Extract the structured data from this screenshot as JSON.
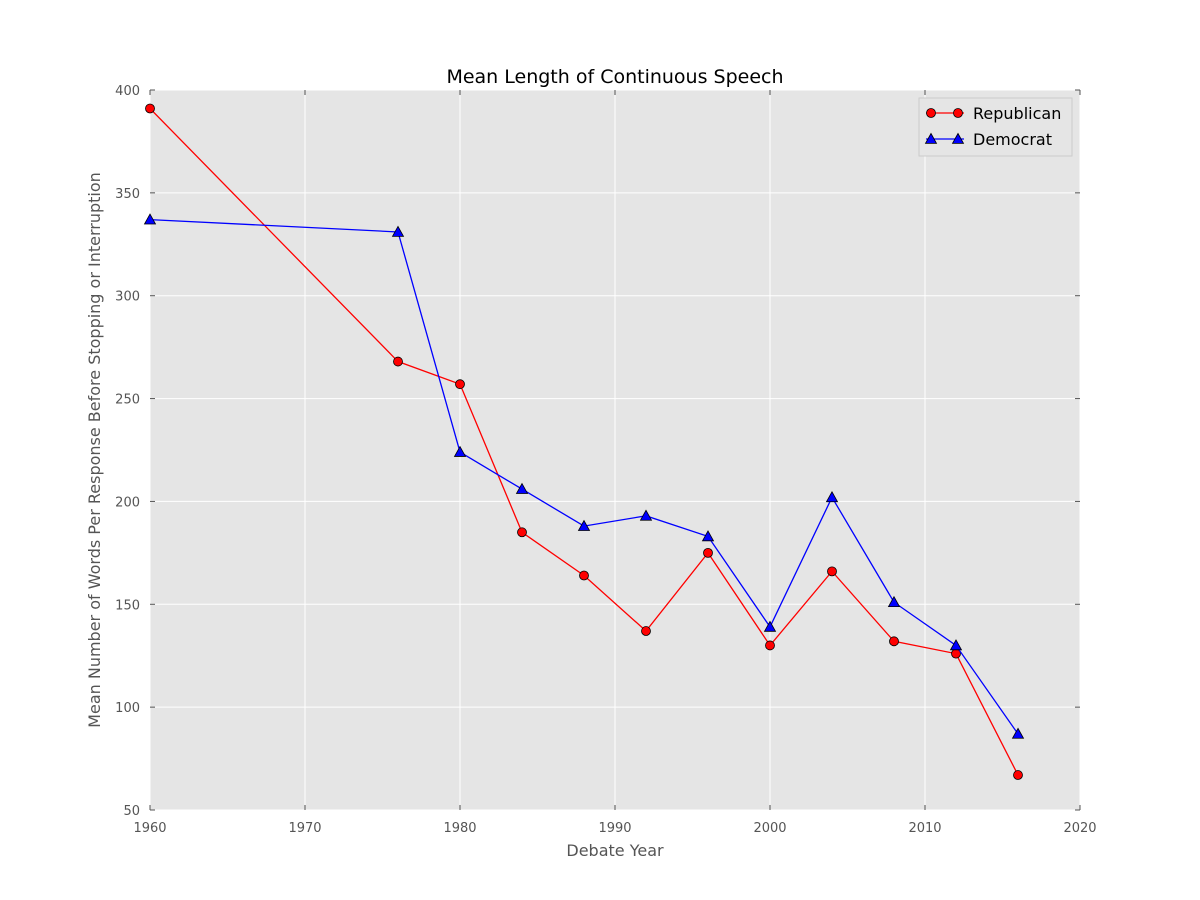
{
  "chart_data": {
    "type": "line",
    "title": "Mean Length of Continuous Speech",
    "xlabel": "Debate Year",
    "ylabel": "Mean Number of Words Per Response Before Stopping or Interruption",
    "xlim": [
      1960,
      2020
    ],
    "ylim": [
      50,
      400
    ],
    "xticks": [
      1960,
      1970,
      1980,
      1990,
      2000,
      2010,
      2020
    ],
    "yticks": [
      50,
      100,
      150,
      200,
      250,
      300,
      350,
      400
    ],
    "grid": true,
    "legend_position": "top-right",
    "background_color": "#e5e5e5",
    "series": [
      {
        "name": "Republican",
        "color": "#ff0000",
        "marker": "circle",
        "x": [
          1960,
          1976,
          1980,
          1984,
          1988,
          1992,
          1996,
          2000,
          2004,
          2008,
          2012,
          2016
        ],
        "values": [
          391,
          268,
          257,
          185,
          164,
          137,
          175,
          130,
          166,
          132,
          126,
          67
        ]
      },
      {
        "name": "Democrat",
        "color": "#0000ff",
        "marker": "triangle",
        "x": [
          1960,
          1976,
          1980,
          1984,
          1988,
          1992,
          1996,
          2000,
          2004,
          2008,
          2012,
          2016
        ],
        "values": [
          337,
          331,
          224,
          206,
          188,
          193,
          183,
          139,
          202,
          151,
          130,
          87
        ]
      }
    ]
  }
}
